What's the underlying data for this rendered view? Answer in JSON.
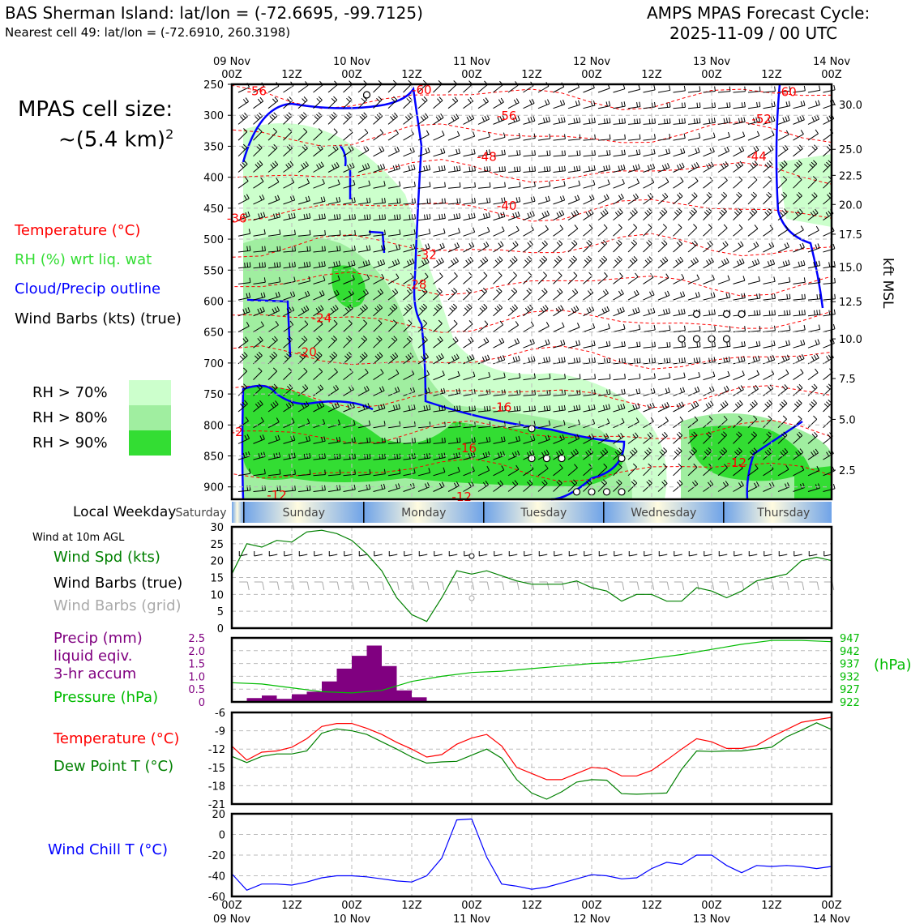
{
  "header": {
    "title_left": "BAS Sherman Island: lat/lon = (-72.6695, -99.7125)",
    "subtitle_left": "Nearest cell 49: lat/lon = (-72.6910, 260.3198)",
    "title_right_1": "AMPS MPAS Forecast Cycle:",
    "title_right_2": "2025-11-09 / 00 UTC"
  },
  "side": {
    "cell_size_1": "MPAS cell size:",
    "cell_size_2": "~(5.4 km)",
    "cell_size_sup": "2",
    "legend_temperature": "Temperature (°C)",
    "legend_rh": "RH (%) wrt liq. wat",
    "legend_cloud": "Cloud/Precip outline",
    "legend_wind": "Wind Barbs (kts) (true)",
    "rh70": "RH > 70%",
    "rh80": "RH > 80%",
    "rh90": "RH > 90%",
    "weekday_label": "Local Weekday",
    "wind10_title": "Wind at 10m AGL",
    "wind_spd": "Wind Spd (kts)",
    "wind_barbs_true": "Wind Barbs (true)",
    "wind_barbs_grid": "Wind Barbs (grid)",
    "precip_1": "Precip (mm)",
    "precip_2": "liquid eqiv.",
    "precip_3": "3-hr accum",
    "pressure": "Pressure (hPa)",
    "hpa_right": "(hPa)",
    "temp": "Temperature (°C)",
    "dewpoint": "Dew Point T (°C)",
    "windchill": "Wind Chill T (°C)",
    "kft_label": "kft MSL"
  },
  "colors": {
    "temperature": "#ff0000",
    "rh": "#33dd33",
    "cloud": "#0000ff",
    "wind_speed": "#008000",
    "wind_grid": "#aaaaaa",
    "precip": "#800080",
    "pressure": "#00bb00",
    "dewpoint": "#008000",
    "windchill": "#0000ff",
    "rh70": "#ccffcc",
    "rh80": "#a0eea0",
    "rh90": "#33dd33"
  },
  "time_axis": {
    "top_days": [
      "09 Nov",
      "10 Nov",
      "11 Nov",
      "12 Nov",
      "13 Nov",
      "14 Nov"
    ],
    "hour_labels": [
      "00Z",
      "12Z",
      "00Z",
      "12Z",
      "00Z",
      "12Z",
      "00Z",
      "12Z",
      "00Z",
      "12Z",
      "00Z"
    ],
    "bottom_days": [
      "09 Nov",
      "10 Nov",
      "11 Nov",
      "12 Nov",
      "13 Nov",
      "14 Nov"
    ]
  },
  "weekdays": [
    "Saturday",
    "Sunday",
    "Monday",
    "Tuesday",
    "Wednesday",
    "Thursday"
  ],
  "chart_data": [
    {
      "type": "heatmap",
      "name": "vertical cross-section",
      "x_hours_range": [
        0,
        120
      ],
      "y_pressure_ticks": [
        "250",
        "300",
        "350",
        "400",
        "450",
        "500",
        "550",
        "600",
        "650",
        "700",
        "750",
        "800",
        "850",
        "900"
      ],
      "ylim": [
        250,
        920
      ],
      "kft_ticks": [
        "30.0",
        "25.0",
        "22.5",
        "20.0",
        "17.5",
        "15.0",
        "12.5",
        "10.0",
        "7.5",
        "5.0",
        "2.5"
      ],
      "kft_pressure": [
        283,
        355,
        397,
        444,
        492,
        545,
        601,
        661,
        725,
        791,
        873
      ],
      "temperature_labels": [
        {
          "text": "-56",
          "h": 5,
          "p": 260
        },
        {
          "text": "-60",
          "h": 38,
          "p": 258
        },
        {
          "text": "-56",
          "h": 55,
          "p": 300
        },
        {
          "text": "-60",
          "h": 111,
          "p": 261
        },
        {
          "text": "-52",
          "h": 106,
          "p": 305
        },
        {
          "text": "-48",
          "h": 51,
          "p": 366
        },
        {
          "text": "-44",
          "h": 105,
          "p": 365
        },
        {
          "text": "-36",
          "h": 1,
          "p": 465
        },
        {
          "text": "-40",
          "h": 55,
          "p": 445
        },
        {
          "text": "-32",
          "h": 39,
          "p": 524
        },
        {
          "text": "-28",
          "h": 37,
          "p": 572
        },
        {
          "text": "-24",
          "h": 18,
          "p": 626
        },
        {
          "text": "-20",
          "h": 15,
          "p": 681
        },
        {
          "text": "-16",
          "h": 54,
          "p": 770
        },
        {
          "text": "-16",
          "h": 47,
          "p": 836
        },
        {
          "text": "-12",
          "h": 101,
          "p": 860
        },
        {
          "text": "-12",
          "h": 9,
          "p": 912
        },
        {
          "text": "-12",
          "h": 46,
          "p": 915
        },
        {
          "text": "-2",
          "h": 1,
          "p": 810
        }
      ],
      "circles": [
        [
          93,
          621
        ],
        [
          99,
          621
        ],
        [
          102,
          621
        ],
        [
          90,
          661
        ],
        [
          93,
          661
        ],
        [
          96,
          661
        ],
        [
          99,
          661
        ],
        [
          60,
          806
        ],
        [
          60,
          854
        ],
        [
          63,
          854
        ],
        [
          66,
          854
        ],
        [
          78,
          854
        ],
        [
          69,
          908
        ],
        [
          72,
          908
        ],
        [
          75,
          908
        ],
        [
          78,
          908
        ],
        [
          27,
          267
        ]
      ]
    },
    {
      "type": "line",
      "name": "10m wind",
      "ylim": [
        0,
        30
      ],
      "yticks": [
        "0",
        "5",
        "10",
        "15",
        "20",
        "25",
        "30"
      ],
      "x_hours": [
        0,
        3,
        6,
        9,
        12,
        15,
        18,
        21,
        24,
        27,
        30,
        33,
        36,
        39,
        42,
        45,
        48,
        51,
        54,
        57,
        60,
        63,
        66,
        69,
        72,
        75,
        78,
        81,
        84,
        87,
        90,
        93,
        96,
        99,
        102,
        105,
        108,
        111,
        114,
        117,
        120
      ],
      "values": [
        16,
        25,
        24,
        26,
        25.5,
        28.5,
        29,
        28,
        26,
        22,
        17,
        9,
        4,
        2,
        9,
        17,
        16,
        17,
        15.5,
        14,
        13,
        13,
        13,
        14,
        12,
        11,
        8,
        10,
        10,
        8,
        8,
        12,
        11,
        9,
        11,
        14,
        15,
        16,
        20,
        21,
        20
      ]
    },
    {
      "type": "bar",
      "name": "precip and pressure",
      "precip_ylim": [
        0,
        2.5
      ],
      "precip_yticks": [
        "0",
        "0.5",
        "1.0",
        "1.5",
        "2.0",
        "2.5"
      ],
      "precip_x_hours": [
        0,
        3,
        6,
        9,
        12,
        15,
        18,
        21,
        24,
        27,
        30,
        33,
        36,
        39,
        42,
        45,
        48,
        51,
        54,
        57,
        60,
        63,
        66,
        69,
        72,
        75,
        78,
        81,
        84,
        87,
        90,
        93,
        96,
        99,
        102,
        105,
        108,
        111,
        114,
        117
      ],
      "precip_values": [
        0,
        0.15,
        0.25,
        0.12,
        0.3,
        0.4,
        0.8,
        1.3,
        1.8,
        2.2,
        1.4,
        0.45,
        0.18,
        0,
        0,
        0,
        0,
        0,
        0,
        0,
        0,
        0,
        0,
        0,
        0,
        0,
        0,
        0,
        0,
        0,
        0,
        0,
        0,
        0,
        0,
        0,
        0,
        0,
        0,
        0
      ],
      "pressure_ylim": [
        922,
        947
      ],
      "pressure_ticks": [
        "922",
        "927",
        "932",
        "937",
        "942",
        "947"
      ],
      "pressure_x_hours": [
        0,
        6,
        12,
        18,
        24,
        30,
        36,
        42,
        48,
        54,
        60,
        66,
        72,
        78,
        84,
        90,
        96,
        102,
        108,
        114,
        120
      ],
      "pressure_values": [
        929.5,
        929,
        927.5,
        926,
        925.5,
        926.5,
        930,
        932,
        933.5,
        934,
        935,
        936,
        937,
        937.5,
        939,
        940.5,
        942.5,
        944.5,
        946,
        946,
        945.5
      ]
    },
    {
      "type": "line",
      "name": "temperature and dew point",
      "ylim": [
        -21,
        -6
      ],
      "yticks": [
        "-6",
        "-9",
        "-12",
        "-15",
        "-18",
        "-21"
      ],
      "x_hours": [
        0,
        3,
        6,
        9,
        12,
        15,
        18,
        21,
        24,
        27,
        30,
        33,
        36,
        39,
        42,
        45,
        48,
        51,
        54,
        57,
        60,
        63,
        66,
        69,
        72,
        75,
        78,
        81,
        84,
        87,
        90,
        93,
        96,
        99,
        102,
        105,
        108,
        111,
        114,
        117,
        120
      ],
      "temperature": [
        -11.5,
        -13.8,
        -12.5,
        -12.3,
        -11.7,
        -10.3,
        -8.3,
        -7.8,
        -7.8,
        -8.6,
        -9.6,
        -10.9,
        -12,
        -13.3,
        -12.9,
        -11.2,
        -10.2,
        -9.6,
        -11.5,
        -15,
        -16,
        -17,
        -17,
        -16,
        -15,
        -15.2,
        -16.4,
        -16.4,
        -15.5,
        -13.8,
        -12,
        -10.3,
        -10.8,
        -11.9,
        -11.9,
        -11.4,
        -10,
        -8.8,
        -7.6,
        -7.2,
        -6.8
      ],
      "dewpoint": [
        -13.2,
        -14.2,
        -13.2,
        -12.8,
        -12.8,
        -12.3,
        -9.4,
        -8.7,
        -9,
        -9.6,
        -10.8,
        -12,
        -13.3,
        -14.3,
        -14.1,
        -14,
        -13,
        -12,
        -13.5,
        -17,
        -19.2,
        -20.2,
        -19,
        -17.4,
        -17,
        -17.1,
        -19.3,
        -19.4,
        -19.3,
        -19.2,
        -15.3,
        -12.3,
        -12.4,
        -12.3,
        -12.3,
        -12,
        -11.7,
        -10,
        -8.9,
        -7.7,
        -8.8
      ]
    },
    {
      "type": "line",
      "name": "wind chill",
      "ylim": [
        -60,
        20
      ],
      "yticks": [
        "20",
        "0",
        "-20",
        "-40",
        "-60"
      ],
      "x_hours": [
        0,
        3,
        6,
        9,
        12,
        15,
        18,
        21,
        24,
        27,
        30,
        33,
        36,
        39,
        42,
        45,
        48,
        51,
        54,
        57,
        60,
        63,
        66,
        69,
        72,
        75,
        78,
        81,
        84,
        87,
        90,
        93,
        96,
        99,
        102,
        105,
        108,
        111,
        114,
        117,
        120
      ],
      "values": [
        -38,
        -54,
        -48,
        -48,
        -49,
        -46,
        -42,
        -40,
        -40,
        -41,
        -43,
        -45,
        -46,
        -40,
        -23,
        14,
        15,
        -22,
        -48,
        -50,
        -53,
        -51,
        -47,
        -43,
        -39,
        -40,
        -43,
        -42,
        -33,
        -27,
        -29,
        -20,
        -20,
        -30,
        -37,
        -30,
        -31,
        -30,
        -31,
        -33,
        -31
      ]
    }
  ]
}
